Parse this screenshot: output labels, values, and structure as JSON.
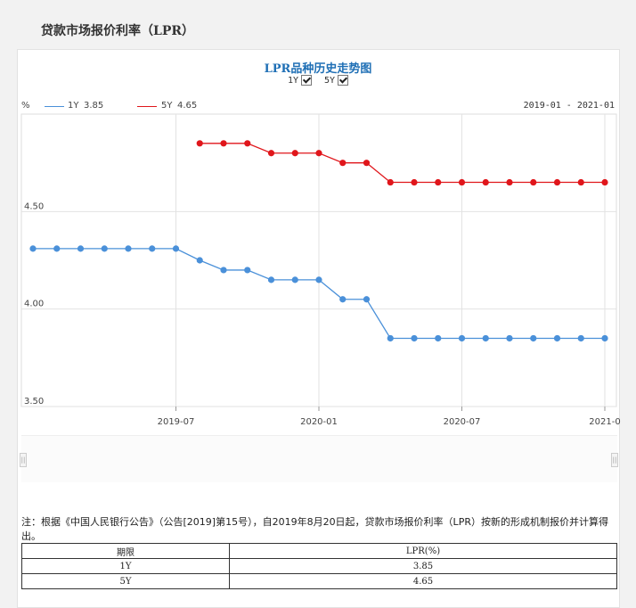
{
  "page": {
    "title": "贷款市场报价利率（LPR）"
  },
  "chart_header": {
    "title": "LPR品种历史走势图",
    "toggles": [
      {
        "label": "1Y",
        "checked": true
      },
      {
        "label": "5Y",
        "checked": true
      }
    ],
    "unit": "%",
    "date_range": "2019-01 - 2021-01"
  },
  "legend": [
    {
      "name": "1Y",
      "value": "3.85",
      "color": "#4a90d9"
    },
    {
      "name": "5Y",
      "value": "4.65",
      "color": "#e0161b"
    }
  ],
  "chart_data": {
    "type": "line",
    "ylim": [
      3.5,
      5.0
    ],
    "yticks": [
      "3.50",
      "4.00",
      "4.50"
    ],
    "xtick_labels": [
      "2019-07",
      "2020-01",
      "2020-07",
      "2021-0"
    ],
    "grid": true,
    "series": [
      {
        "name": "1Y",
        "color": "#4a90d9",
        "x": [
          "2019-01",
          "2019-02",
          "2019-03",
          "2019-04",
          "2019-05",
          "2019-06",
          "2019-07",
          "2019-08",
          "2019-09",
          "2019-10",
          "2019-11",
          "2019-12",
          "2020-01",
          "2020-02",
          "2020-03",
          "2020-04",
          "2020-05",
          "2020-06",
          "2020-07",
          "2020-08",
          "2020-09",
          "2020-10",
          "2020-11",
          "2020-12",
          "2021-01"
        ],
        "values": [
          4.31,
          4.31,
          4.31,
          4.31,
          4.31,
          4.31,
          4.31,
          4.25,
          4.2,
          4.2,
          4.15,
          4.15,
          4.15,
          4.05,
          4.05,
          3.85,
          3.85,
          3.85,
          3.85,
          3.85,
          3.85,
          3.85,
          3.85,
          3.85,
          3.85
        ]
      },
      {
        "name": "5Y",
        "color": "#e0161b",
        "x": [
          "2019-08",
          "2019-09",
          "2019-10",
          "2019-11",
          "2019-12",
          "2020-01",
          "2020-02",
          "2020-03",
          "2020-04",
          "2020-05",
          "2020-06",
          "2020-07",
          "2020-08",
          "2020-09",
          "2020-10",
          "2020-11",
          "2020-12",
          "2021-01"
        ],
        "values": [
          4.85,
          4.85,
          4.85,
          4.8,
          4.8,
          4.8,
          4.75,
          4.75,
          4.65,
          4.65,
          4.65,
          4.65,
          4.65,
          4.65,
          4.65,
          4.65,
          4.65,
          4.65
        ]
      }
    ]
  },
  "note": "注：根据《中国人民银行公告》（公告[2019]第15号），自2019年8月20日起，贷款市场报价利率（LPR）按新的形成机制报价并计算得出。",
  "table": {
    "headers": [
      "期限",
      "LPR(%)"
    ],
    "rows": [
      [
        "1Y",
        "3.85"
      ],
      [
        "5Y",
        "4.65"
      ]
    ]
  }
}
